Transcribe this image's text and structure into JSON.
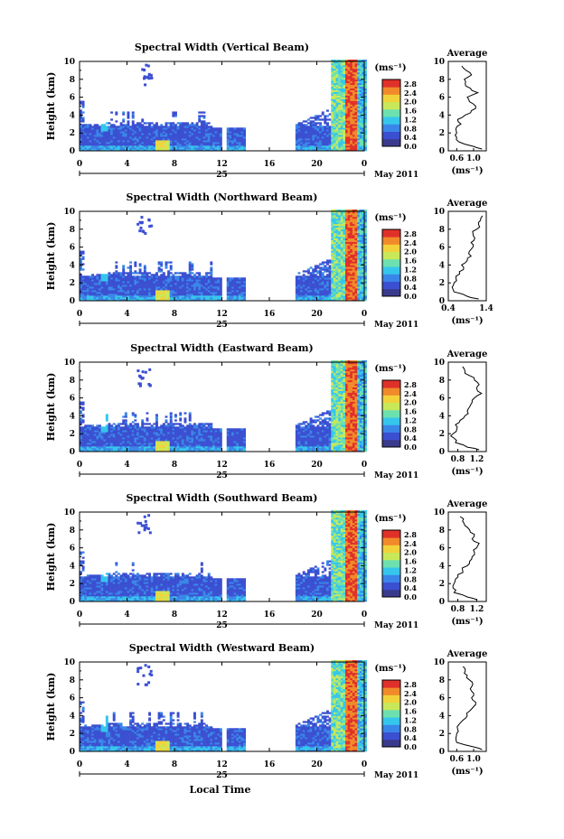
{
  "common": {
    "date_label": "May 2011",
    "day_label": "25",
    "xlabel_bottom": "Local Time",
    "ylabel": "Height (km)",
    "colorbar_unit": "(ms⁻¹)",
    "colorbar_ticks": [
      "2.8",
      "2.4",
      "2.0",
      "1.6",
      "1.2",
      "0.8",
      "0.4",
      "0.0"
    ],
    "avg_title": "Average",
    "avg_xlabel": "(ms⁻¹)",
    "x_ticks": [
      "0",
      "4",
      "8",
      "12",
      "16",
      "20",
      "0"
    ],
    "y_ticks": [
      "0",
      "2",
      "4",
      "6",
      "8",
      "10"
    ],
    "colors": {
      "c0": "#3a3a8c",
      "c1": "#3b4fd1",
      "c2": "#3a86e8",
      "c3": "#36c6ec",
      "c4": "#6de0b0",
      "c5": "#c8e85a",
      "c6": "#f2d23a",
      "c7": "#f08a2a",
      "c8": "#e0302a"
    }
  },
  "chart_data": [
    {
      "type": "heatmap",
      "title": "Spectral Width (Vertical Beam)",
      "xlim": [
        0,
        24
      ],
      "ylim": [
        0,
        10
      ],
      "colorbar_range": [
        0.0,
        3.0
      ],
      "avg_xticks": [
        "0.6",
        "1.0"
      ],
      "avg_xlim": [
        0.4,
        1.3
      ],
      "avg_profile": {
        "height": [
          0.2,
          0.5,
          1,
          1.5,
          2,
          2.5,
          3,
          3.5,
          4,
          4.5,
          5,
          5.5,
          6,
          6.5,
          7,
          7.5,
          8,
          8.5,
          9,
          9.5
        ],
        "value": [
          1.2,
          1.0,
          0.65,
          0.6,
          0.6,
          0.58,
          0.7,
          0.62,
          0.8,
          0.95,
          1.05,
          0.9,
          0.85,
          1.1,
          0.92,
          0.8,
          0.78,
          0.95,
          0.82,
          0.72
        ]
      }
    },
    {
      "type": "heatmap",
      "title": "Spectral Width (Northward Beam)",
      "xlim": [
        0,
        24
      ],
      "ylim": [
        0,
        10
      ],
      "colorbar_range": [
        0.0,
        3.0
      ],
      "avg_xticks": [
        "0.4",
        "1.4"
      ],
      "avg_xlim": [
        0.4,
        1.4
      ],
      "avg_profile": {
        "height": [
          0.2,
          0.5,
          1,
          1.5,
          2,
          2.5,
          3,
          3.5,
          4,
          4.5,
          5,
          5.5,
          6,
          6.5,
          7,
          7.5,
          8,
          8.5,
          9,
          9.5
        ],
        "value": [
          1.2,
          0.9,
          0.55,
          0.5,
          0.55,
          0.6,
          0.7,
          0.8,
          0.75,
          0.9,
          1.0,
          0.95,
          1.05,
          1.0,
          1.1,
          1.05,
          1.15,
          1.2,
          1.25,
          1.3
        ]
      }
    },
    {
      "type": "heatmap",
      "title": "Spectral Width (Eastward Beam)",
      "xlim": [
        0,
        24
      ],
      "ylim": [
        0,
        10
      ],
      "colorbar_range": [
        0.0,
        3.0
      ],
      "avg_xticks": [
        "0.8",
        "1.2"
      ],
      "avg_xlim": [
        0.6,
        1.4
      ],
      "avg_profile": {
        "height": [
          0.2,
          0.5,
          1,
          1.5,
          2,
          2.5,
          3,
          3.5,
          4,
          4.5,
          5,
          5.5,
          6,
          6.5,
          7,
          7.5,
          8,
          8.5,
          9,
          9.5
        ],
        "value": [
          1.25,
          1.0,
          0.75,
          0.72,
          0.7,
          0.78,
          0.75,
          0.85,
          0.95,
          1.0,
          1.05,
          1.1,
          1.15,
          1.3,
          1.2,
          1.25,
          1.15,
          1.05,
          0.95,
          0.9
        ]
      }
    },
    {
      "type": "heatmap",
      "title": "Spectral Width (Southward Beam)",
      "xlim": [
        0,
        24
      ],
      "ylim": [
        0,
        10
      ],
      "colorbar_range": [
        0.0,
        3.0
      ],
      "avg_xticks": [
        "0.8",
        "1.2"
      ],
      "avg_xlim": [
        0.6,
        1.4
      ],
      "avg_profile": {
        "height": [
          0.2,
          0.5,
          1,
          1.5,
          2,
          2.5,
          3,
          3.5,
          4,
          4.5,
          5,
          5.5,
          6,
          6.5,
          7,
          7.5,
          8,
          8.5,
          9,
          9.5
        ],
        "value": [
          1.2,
          1.0,
          0.72,
          0.7,
          0.72,
          0.75,
          0.8,
          0.9,
          1.0,
          1.05,
          1.1,
          1.15,
          1.2,
          1.25,
          1.1,
          1.15,
          1.05,
          0.95,
          0.9,
          0.85
        ]
      }
    },
    {
      "type": "heatmap",
      "title": "Spectral Width (Westward Beam)",
      "xlim": [
        0,
        24
      ],
      "ylim": [
        0,
        10
      ],
      "colorbar_range": [
        0.0,
        3.0
      ],
      "avg_xticks": [
        "0.6",
        "1.0"
      ],
      "avg_xlim": [
        0.4,
        1.3
      ],
      "avg_profile": {
        "height": [
          0.2,
          0.5,
          1,
          1.5,
          2,
          2.5,
          3,
          3.5,
          4,
          4.5,
          5,
          5.5,
          6,
          6.5,
          7,
          7.5,
          8,
          8.5,
          9,
          9.5
        ],
        "value": [
          1.2,
          1.0,
          0.6,
          0.58,
          0.6,
          0.62,
          0.65,
          0.75,
          0.85,
          0.9,
          1.0,
          1.05,
          0.95,
          1.0,
          0.92,
          0.98,
          0.9,
          0.85,
          0.8,
          0.75
        ]
      }
    }
  ]
}
